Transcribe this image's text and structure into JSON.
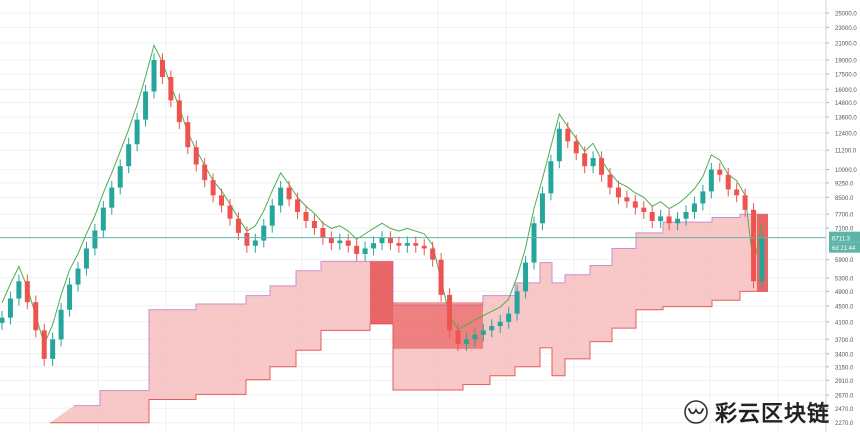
{
  "chart_data": {
    "type": "candlestick",
    "scale": "log",
    "y_ticks": [
      25000.0,
      23000.0,
      21000.0,
      19000.0,
      17500.0,
      16000.0,
      14800.0,
      13600.0,
      12400.0,
      11200.0,
      10000.0,
      9250.0,
      8500.0,
      7700.0,
      7100.0,
      5900.0,
      5300.0,
      4900.0,
      4500.0,
      4100.0,
      3700.0,
      3400.0,
      3150.0,
      2910.0,
      2670.0,
      2470.0,
      2270.0
    ],
    "y_tick_labels": [
      "25000.0",
      "23000.0",
      "21000.0",
      "19000.0",
      "17500.0",
      "16000.0",
      "14800.0",
      "13600.0",
      "12400.0",
      "11200.0",
      "10000.0",
      "9250.0",
      "8500.0",
      "7700.0",
      "7100.0",
      "5900.0",
      "5300.0",
      "4900.0",
      "4500.0",
      "4100.0",
      "3700.0",
      "3400.0",
      "3150.0",
      "2910.0",
      "2670.0",
      "2470.0",
      "2270.0"
    ],
    "ylim": [
      2150,
      27000
    ],
    "grid": true,
    "current_price": {
      "label": "6711.3",
      "value": 6711.3
    },
    "countdown_label": "6d 21:44",
    "price_closes": [
      4200,
      4700,
      5200,
      4600,
      3900,
      3300,
      3700,
      4400,
      5100,
      5600,
      6300,
      7000,
      8000,
      9000,
      10200,
      11600,
      13400,
      15800,
      19000,
      17200,
      15000,
      13200,
      11400,
      10300,
      9400,
      8600,
      8100,
      7500,
      6900,
      6400,
      6600,
      7200,
      8100,
      9000,
      8400,
      7800,
      7400,
      7100,
      6700,
      6500,
      6600,
      6400,
      6100,
      6300,
      6500,
      6700,
      6500,
      6400,
      6500,
      6400,
      6300,
      5900,
      4800,
      3900,
      3600,
      3700,
      3800,
      3900,
      4000,
      4100,
      4300,
      4900,
      5800,
      7300,
      8700,
      10500,
      12700,
      11800,
      11000,
      10200,
      10700,
      9700,
      9000,
      8500,
      8300,
      8000,
      7800,
      7400,
      7600,
      7300,
      7500,
      7800,
      8200,
      8800,
      10000,
      9700,
      8900,
      8600,
      7900,
      5200,
      6700
    ],
    "price_start_x": 2,
    "price_end_x": 762,
    "band_upper_steps": [
      {
        "x": 74,
        "v": 2510
      },
      {
        "x": 100,
        "v": 2740
      },
      {
        "x": 149,
        "v": 4400
      },
      {
        "x": 196,
        "v": 4550
      },
      {
        "x": 246,
        "v": 4780
      },
      {
        "x": 270,
        "v": 5060
      },
      {
        "x": 296,
        "v": 5530
      },
      {
        "x": 321,
        "v": 5840
      },
      {
        "x": 370,
        "v": 5840
      },
      {
        "x": 393,
        "v": 4520
      },
      {
        "x": 483,
        "v": 4780
      },
      {
        "x": 515,
        "v": 5150
      },
      {
        "x": 540,
        "v": 5800
      },
      {
        "x": 552,
        "v": 5150
      },
      {
        "x": 565,
        "v": 5400
      },
      {
        "x": 590,
        "v": 5700
      },
      {
        "x": 612,
        "v": 6300
      },
      {
        "x": 636,
        "v": 6900
      },
      {
        "x": 663,
        "v": 7350
      },
      {
        "x": 712,
        "v": 7550
      },
      {
        "x": 740,
        "v": 7700
      },
      {
        "x": 768,
        "v": 7700
      }
    ],
    "band_lower_steps": [
      {
        "x": 50,
        "v": 2270
      },
      {
        "x": 74,
        "v": 2270
      },
      {
        "x": 149,
        "v": 2600
      },
      {
        "x": 196,
        "v": 2680
      },
      {
        "x": 246,
        "v": 2920
      },
      {
        "x": 270,
        "v": 3150
      },
      {
        "x": 296,
        "v": 3470
      },
      {
        "x": 321,
        "v": 3900
      },
      {
        "x": 370,
        "v": 4050
      },
      {
        "x": 393,
        "v": 2750
      },
      {
        "x": 463,
        "v": 2840
      },
      {
        "x": 490,
        "v": 2990
      },
      {
        "x": 515,
        "v": 3150
      },
      {
        "x": 540,
        "v": 3520
      },
      {
        "x": 552,
        "v": 2990
      },
      {
        "x": 565,
        "v": 3300
      },
      {
        "x": 590,
        "v": 3650
      },
      {
        "x": 612,
        "v": 3950
      },
      {
        "x": 636,
        "v": 4400
      },
      {
        "x": 663,
        "v": 4480
      },
      {
        "x": 712,
        "v": 4650
      },
      {
        "x": 740,
        "v": 4900
      },
      {
        "x": 768,
        "v": 4900
      }
    ],
    "colors": {
      "up": "#26a69a",
      "down": "#ef5350",
      "band_fill": "#f5b1b1",
      "band_line": "#e85c5c",
      "band_strong": "#e64646",
      "envelope": "#4caf50",
      "current_line": "#5fb4a8",
      "axis_text": "#555555",
      "grid": "#eef0f3"
    }
  },
  "watermark": {
    "text": "彩云区块链",
    "icon": "wechat-channel-icon"
  }
}
